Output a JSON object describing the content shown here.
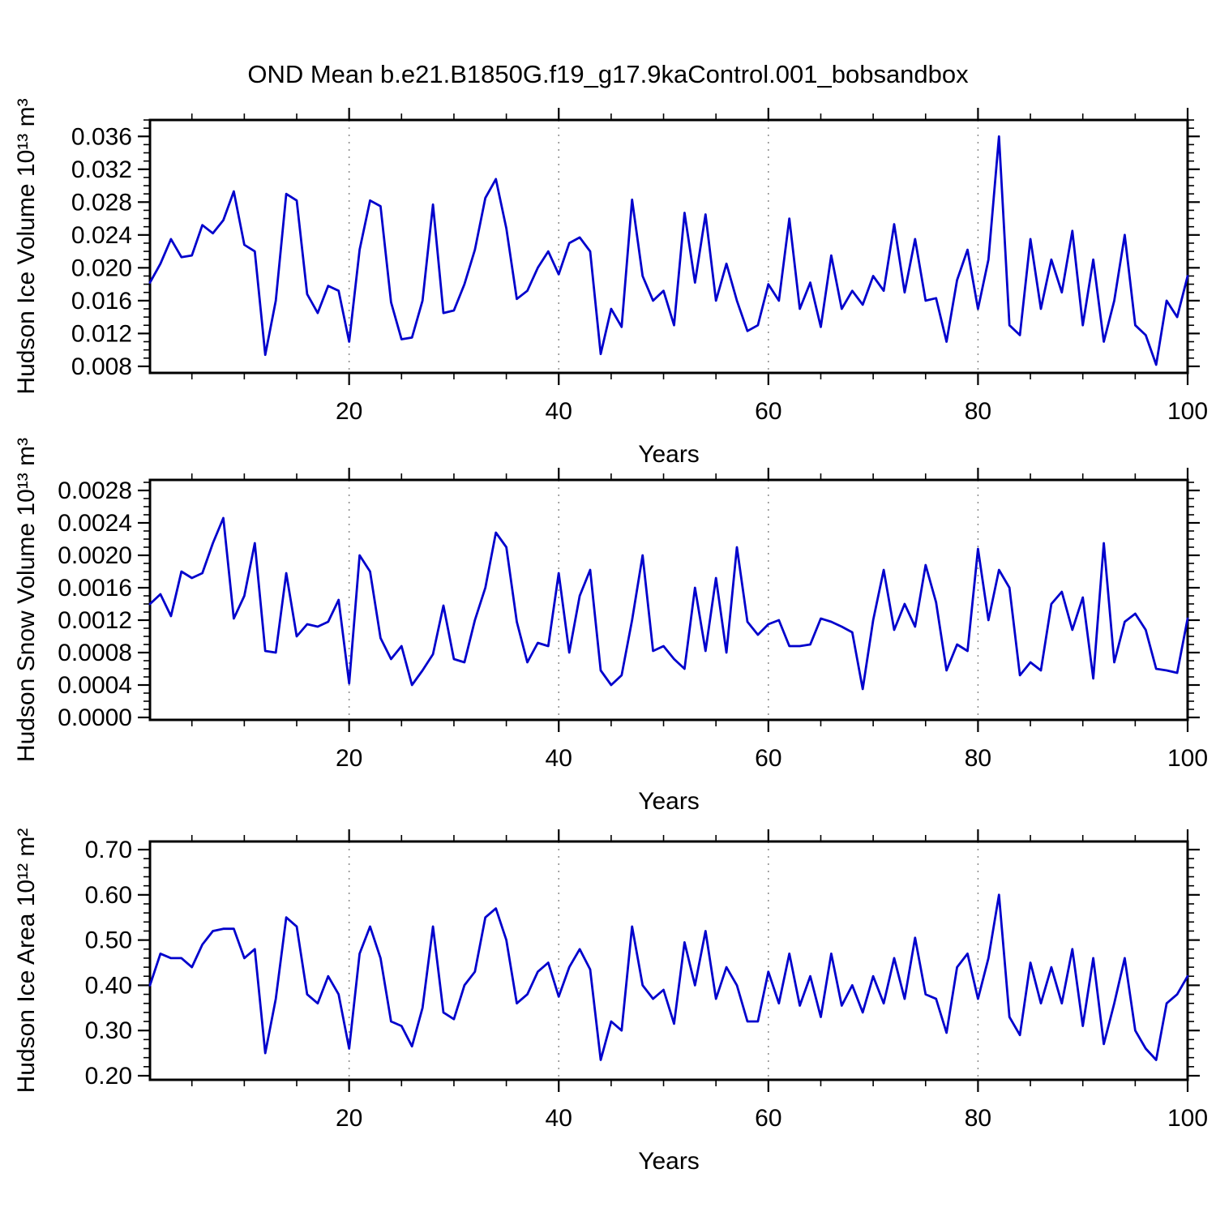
{
  "title": "OND Mean b.e21.B1850G.f19_g17.9kaControl.001_bobsandbox",
  "chart_data": [
    {
      "type": "line",
      "ylabel": "Hudson Ice Volume 10¹³ m³",
      "xlabel": "Years",
      "legend": "none",
      "grid": "vertical-dashed",
      "line_color": "#0000cc",
      "xlim": [
        1,
        100
      ],
      "ylim": [
        0.0072,
        0.038
      ],
      "x_ticks_major": [
        20,
        40,
        60,
        80,
        100
      ],
      "x_tick_labels": [
        "20",
        "40",
        "60",
        "80",
        "100"
      ],
      "x_minor_step": 5,
      "grid_x": [
        20,
        40,
        60,
        80
      ],
      "y_ticks": [
        0.008,
        0.012,
        0.016,
        0.02,
        0.024,
        0.028,
        0.032,
        0.036
      ],
      "y_tick_labels": [
        "0.008",
        "0.012",
        "0.016",
        "0.020",
        "0.024",
        "0.028",
        "0.032",
        "0.036"
      ],
      "y_minor_step": 0.001,
      "x": [
        1,
        2,
        3,
        4,
        5,
        6,
        7,
        8,
        9,
        10,
        11,
        12,
        13,
        14,
        15,
        16,
        17,
        18,
        19,
        20,
        21,
        22,
        23,
        24,
        25,
        26,
        27,
        28,
        29,
        30,
        31,
        32,
        33,
        34,
        35,
        36,
        37,
        38,
        39,
        40,
        41,
        42,
        43,
        44,
        45,
        46,
        47,
        48,
        49,
        50,
        51,
        52,
        53,
        54,
        55,
        56,
        57,
        58,
        59,
        60,
        61,
        62,
        63,
        64,
        65,
        66,
        67,
        68,
        69,
        70,
        71,
        72,
        73,
        74,
        75,
        76,
        77,
        78,
        79,
        80,
        81,
        82,
        83,
        84,
        85,
        86,
        87,
        88,
        89,
        90,
        91,
        92,
        93,
        94,
        95,
        96,
        97,
        98,
        99,
        100
      ],
      "values": [
        0.0182,
        0.0205,
        0.0235,
        0.0213,
        0.0215,
        0.0252,
        0.0242,
        0.0258,
        0.0293,
        0.0228,
        0.022,
        0.0094,
        0.016,
        0.029,
        0.0282,
        0.0168,
        0.0145,
        0.0178,
        0.0172,
        0.011,
        0.0222,
        0.0282,
        0.0275,
        0.0158,
        0.0113,
        0.0115,
        0.016,
        0.0277,
        0.0145,
        0.0148,
        0.018,
        0.0222,
        0.0285,
        0.0308,
        0.0248,
        0.0162,
        0.0172,
        0.02,
        0.022,
        0.0192,
        0.023,
        0.0237,
        0.022,
        0.0095,
        0.015,
        0.0128,
        0.0283,
        0.019,
        0.016,
        0.0172,
        0.013,
        0.0267,
        0.0182,
        0.0265,
        0.016,
        0.0205,
        0.016,
        0.0123,
        0.013,
        0.018,
        0.016,
        0.026,
        0.015,
        0.0182,
        0.0128,
        0.0215,
        0.015,
        0.0172,
        0.0155,
        0.019,
        0.0172,
        0.0253,
        0.017,
        0.0235,
        0.016,
        0.0163,
        0.011,
        0.0185,
        0.0222,
        0.015,
        0.021,
        0.036,
        0.013,
        0.0118,
        0.0235,
        0.015,
        0.021,
        0.017,
        0.0245,
        0.013,
        0.021,
        0.011,
        0.016,
        0.024,
        0.013,
        0.0118,
        0.0082,
        0.016,
        0.014,
        0.019
      ]
    },
    {
      "type": "line",
      "ylabel": "Hudson Snow Volume 10¹³ m³",
      "xlabel": "Years",
      "legend": "none",
      "grid": "vertical-dashed",
      "line_color": "#0000cc",
      "xlim": [
        1,
        100
      ],
      "ylim": [
        -3e-05,
        0.00293
      ],
      "x_ticks_major": [
        20,
        40,
        60,
        80,
        100
      ],
      "x_tick_labels": [
        "20",
        "40",
        "60",
        "80",
        "100"
      ],
      "x_minor_step": 5,
      "grid_x": [
        20,
        40,
        60,
        80
      ],
      "y_ticks": [
        0.0,
        0.0004,
        0.0008,
        0.0012,
        0.0016,
        0.002,
        0.0024,
        0.0028
      ],
      "y_tick_labels": [
        "0.0000",
        "0.0004",
        "0.0008",
        "0.0012",
        "0.0016",
        "0.0020",
        "0.0024",
        "0.0028"
      ],
      "y_minor_step": 0.0001,
      "x": [
        1,
        2,
        3,
        4,
        5,
        6,
        7,
        8,
        9,
        10,
        11,
        12,
        13,
        14,
        15,
        16,
        17,
        18,
        19,
        20,
        21,
        22,
        23,
        24,
        25,
        26,
        27,
        28,
        29,
        30,
        31,
        32,
        33,
        34,
        35,
        36,
        37,
        38,
        39,
        40,
        41,
        42,
        43,
        44,
        45,
        46,
        47,
        48,
        49,
        50,
        51,
        52,
        53,
        54,
        55,
        56,
        57,
        58,
        59,
        60,
        61,
        62,
        63,
        64,
        65,
        66,
        67,
        68,
        69,
        70,
        71,
        72,
        73,
        74,
        75,
        76,
        77,
        78,
        79,
        80,
        81,
        82,
        83,
        84,
        85,
        86,
        87,
        88,
        89,
        90,
        91,
        92,
        93,
        94,
        95,
        96,
        97,
        98,
        99,
        100
      ],
      "values": [
        0.0014,
        0.00152,
        0.00125,
        0.0018,
        0.00172,
        0.00178,
        0.00215,
        0.00246,
        0.00122,
        0.0015,
        0.00215,
        0.00082,
        0.0008,
        0.00178,
        0.001,
        0.00115,
        0.00112,
        0.00118,
        0.00145,
        0.00042,
        0.002,
        0.0018,
        0.00098,
        0.00072,
        0.00088,
        0.0004,
        0.00058,
        0.00078,
        0.00138,
        0.00072,
        0.00068,
        0.0012,
        0.0016,
        0.00228,
        0.0021,
        0.00118,
        0.00068,
        0.00092,
        0.00088,
        0.00178,
        0.0008,
        0.0015,
        0.00182,
        0.00058,
        0.0004,
        0.00052,
        0.0012,
        0.002,
        0.00082,
        0.00088,
        0.00072,
        0.0006,
        0.0016,
        0.00082,
        0.00172,
        0.0008,
        0.0021,
        0.00118,
        0.00102,
        0.00115,
        0.0012,
        0.00088,
        0.00088,
        0.0009,
        0.00122,
        0.00118,
        0.00112,
        0.00105,
        0.00035,
        0.0012,
        0.00182,
        0.00108,
        0.0014,
        0.00112,
        0.00188,
        0.00142,
        0.00058,
        0.0009,
        0.00082,
        0.00208,
        0.0012,
        0.00182,
        0.0016,
        0.00052,
        0.00068,
        0.00058,
        0.0014,
        0.00155,
        0.00108,
        0.00148,
        0.00048,
        0.00215,
        0.00068,
        0.00118,
        0.00128,
        0.00108,
        0.0006,
        0.00058,
        0.00055,
        0.00122
      ]
    },
    {
      "type": "line",
      "ylabel": "Hudson Ice Area 10¹² m²",
      "xlabel": "Years",
      "legend": "none",
      "grid": "vertical-dashed",
      "line_color": "#0000cc",
      "xlim": [
        1,
        100
      ],
      "ylim": [
        0.191,
        0.718
      ],
      "x_ticks_major": [
        20,
        40,
        60,
        80,
        100
      ],
      "x_tick_labels": [
        "20",
        "40",
        "60",
        "80",
        "100"
      ],
      "x_minor_step": 5,
      "grid_x": [
        20,
        40,
        60,
        80
      ],
      "y_ticks": [
        0.2,
        0.3,
        0.4,
        0.5,
        0.6,
        0.7
      ],
      "y_tick_labels": [
        "0.20",
        "0.30",
        "0.40",
        "0.50",
        "0.60",
        "0.70"
      ],
      "y_minor_step": 0.02,
      "x": [
        1,
        2,
        3,
        4,
        5,
        6,
        7,
        8,
        9,
        10,
        11,
        12,
        13,
        14,
        15,
        16,
        17,
        18,
        19,
        20,
        21,
        22,
        23,
        24,
        25,
        26,
        27,
        28,
        29,
        30,
        31,
        32,
        33,
        34,
        35,
        36,
        37,
        38,
        39,
        40,
        41,
        42,
        43,
        44,
        45,
        46,
        47,
        48,
        49,
        50,
        51,
        52,
        53,
        54,
        55,
        56,
        57,
        58,
        59,
        60,
        61,
        62,
        63,
        64,
        65,
        66,
        67,
        68,
        69,
        70,
        71,
        72,
        73,
        74,
        75,
        76,
        77,
        78,
        79,
        80,
        81,
        82,
        83,
        84,
        85,
        86,
        87,
        88,
        89,
        90,
        91,
        92,
        93,
        94,
        95,
        96,
        97,
        98,
        99,
        100
      ],
      "values": [
        0.4,
        0.47,
        0.46,
        0.46,
        0.44,
        0.49,
        0.52,
        0.525,
        0.525,
        0.46,
        0.48,
        0.25,
        0.37,
        0.55,
        0.53,
        0.38,
        0.36,
        0.42,
        0.38,
        0.26,
        0.47,
        0.53,
        0.46,
        0.32,
        0.31,
        0.265,
        0.35,
        0.53,
        0.34,
        0.325,
        0.4,
        0.43,
        0.55,
        0.57,
        0.5,
        0.36,
        0.38,
        0.43,
        0.45,
        0.375,
        0.44,
        0.48,
        0.435,
        0.235,
        0.32,
        0.3,
        0.53,
        0.4,
        0.37,
        0.39,
        0.315,
        0.495,
        0.4,
        0.52,
        0.37,
        0.44,
        0.4,
        0.32,
        0.32,
        0.43,
        0.36,
        0.47,
        0.355,
        0.42,
        0.33,
        0.47,
        0.355,
        0.4,
        0.34,
        0.42,
        0.36,
        0.46,
        0.37,
        0.505,
        0.38,
        0.37,
        0.295,
        0.44,
        0.47,
        0.37,
        0.46,
        0.6,
        0.33,
        0.29,
        0.45,
        0.36,
        0.44,
        0.36,
        0.48,
        0.31,
        0.46,
        0.27,
        0.36,
        0.46,
        0.3,
        0.26,
        0.235,
        0.36,
        0.38,
        0.42
      ]
    }
  ]
}
